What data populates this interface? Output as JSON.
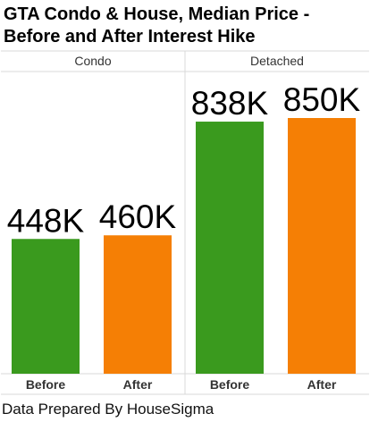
{
  "chart_data": {
    "type": "bar",
    "title": [
      "GTA Condo & House, Median Price -",
      "Before and After Interest Hike"
    ],
    "panels": [
      {
        "name": "Condo",
        "categories": [
          "Before",
          "After"
        ],
        "values": [
          448,
          460
        ],
        "labels": [
          "448K",
          "460K"
        ]
      },
      {
        "name": "Detached",
        "categories": [
          "Before",
          "After"
        ],
        "values": [
          838,
          850
        ],
        "labels": [
          "838K",
          "850K"
        ]
      }
    ],
    "unit": "K",
    "ylim": [
      0,
      1000
    ],
    "colors": {
      "Before": "#3a9a1e",
      "After": "#f57f05"
    },
    "grid": false,
    "legend": "none"
  },
  "footer": "Data Prepared By HouseSigma"
}
